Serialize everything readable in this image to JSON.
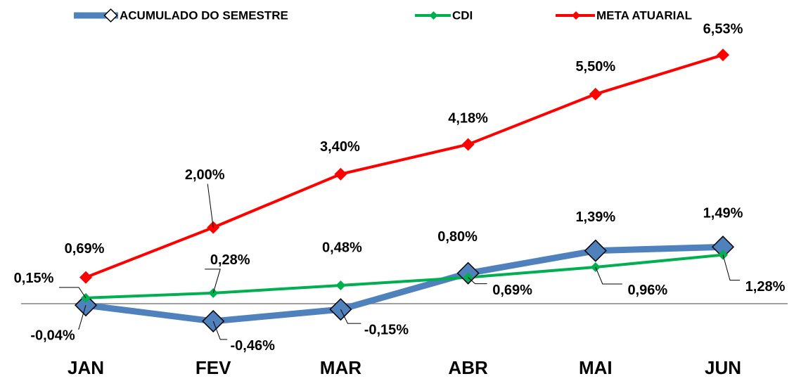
{
  "chart_data": {
    "type": "line",
    "categories": [
      "JAN",
      "FEV",
      "MAR",
      "ABR",
      "MAI",
      "JUN"
    ],
    "series": [
      {
        "name": "ACUMULADO DO SEMESTRE",
        "color": "#4f81bd",
        "values": [
          -0.04,
          -0.46,
          -0.15,
          0.8,
          1.39,
          1.49
        ],
        "value_labels": [
          "-0,04%",
          "-0,46%",
          "-0,15%",
          "0,80%",
          "1,39%",
          "1,49%"
        ]
      },
      {
        "name": "CDI",
        "color": "#00b050",
        "values": [
          0.15,
          0.28,
          0.48,
          0.69,
          0.96,
          1.28
        ],
        "value_labels": [
          "0,15%",
          "0,28%",
          "0,48%",
          "0,69%",
          "0,96%",
          "1,28%"
        ]
      },
      {
        "name": "META ATUARIAL",
        "color": "#ff0000",
        "values": [
          0.69,
          2.0,
          3.4,
          4.18,
          5.5,
          6.53
        ],
        "value_labels": [
          "0,69%",
          "2,00%",
          "3,40%",
          "4,18%",
          "5,50%",
          "6,53%"
        ]
      }
    ],
    "ylim": [
      -1.5,
      7
    ],
    "legend": "top"
  }
}
